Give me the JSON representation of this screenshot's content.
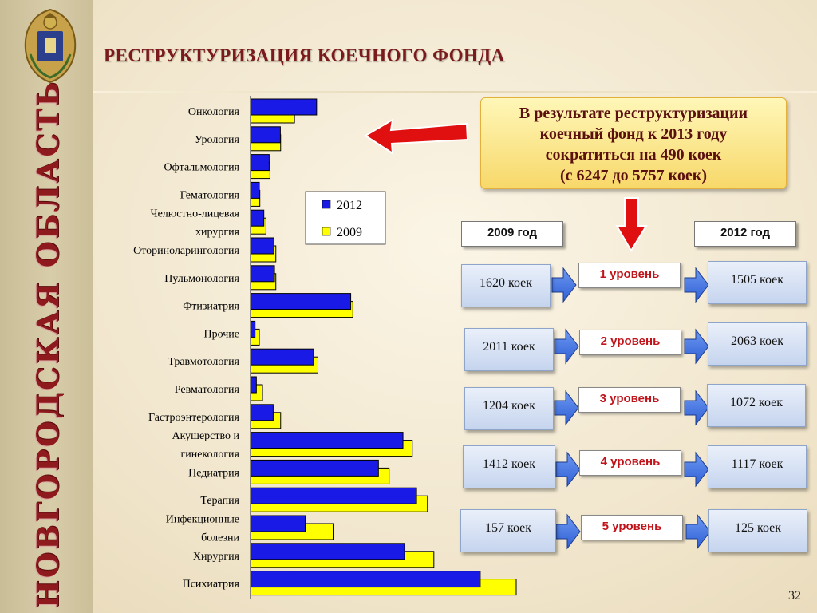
{
  "sidebar": {
    "region_name": "НОВГОРОДСКАЯ ОБЛАСТЬ"
  },
  "title": "РЕСТРУКТУРИЗАЦИЯ КОЕЧНОГО ФОНДА",
  "info_box": {
    "lines": [
      "В результате реструктуризации",
      "коечный фонд к 2013 году",
      "сократиться на 490 коек",
      "(с 6247 до 5757 коек)"
    ]
  },
  "flow": {
    "header_2009": "2009 год",
    "header_2012": "2012 год",
    "levels": [
      {
        "before": "1620 коек",
        "label": "1 уровень",
        "after": "1505 коек"
      },
      {
        "before": "2011 коек",
        "label": "2 уровень",
        "after": "2063 коек"
      },
      {
        "before": "1204 коек",
        "label": "3 уровень",
        "after": "1072 коек"
      },
      {
        "before": "1412 коек",
        "label": "4 уровень",
        "after": "1117 коек"
      },
      {
        "before": "157 коек",
        "label": "5 уровень",
        "after": "125 коек"
      }
    ]
  },
  "page_number": "32",
  "colors": {
    "series_2012": "#1a1ae6",
    "series_2009": "#ffff00",
    "title": "#7a1a1c",
    "accent_red": "#e01010"
  },
  "chart_data": {
    "type": "bar",
    "orientation": "horizontal",
    "categories": [
      [
        "Онкология"
      ],
      [
        "Урология"
      ],
      [
        "Офтальмология"
      ],
      [
        "Гематология"
      ],
      [
        "Челюстно-лицевая",
        "хирургия"
      ],
      [
        "Оториноларингология"
      ],
      [
        "Пульмонология"
      ],
      [
        "Фтизиатрия"
      ],
      [
        "Прочие"
      ],
      [
        "Травмотология"
      ],
      [
        "Ревматология"
      ],
      [
        "Гастроэнтерология"
      ],
      [
        "Акушерство и",
        "гинекология"
      ],
      [
        "Педиатрия"
      ],
      [
        "Терапия"
      ],
      [
        "Инфекционные",
        "болезни"
      ],
      [
        "Хирургия"
      ],
      [
        "Психиатрия"
      ]
    ],
    "series": [
      {
        "name": "2012",
        "values": [
          248,
          112,
          70,
          33,
          50,
          88,
          90,
          376,
          17,
          237,
          22,
          85,
          572,
          480,
          623,
          205,
          578,
          862
        ]
      },
      {
        "name": "2009",
        "values": [
          165,
          113,
          73,
          35,
          58,
          95,
          95,
          384,
          33,
          253,
          45,
          113,
          607,
          520,
          664,
          310,
          688,
          997
        ]
      }
    ],
    "xlim": [
      0,
      1000
    ],
    "legend_position": "upper-middle",
    "grid": false
  }
}
